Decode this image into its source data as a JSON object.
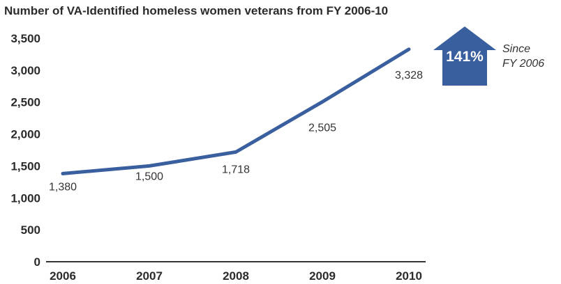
{
  "chart_data": {
    "type": "line",
    "title": "Number of VA-Identified homeless women veterans from FY 2006-10",
    "xlabel": "",
    "ylabel": "",
    "categories": [
      "2006",
      "2007",
      "2008",
      "2009",
      "2010"
    ],
    "series": [
      {
        "values": [
          1380,
          1500,
          1718,
          2505,
          3328
        ]
      }
    ],
    "data_labels": [
      "1,380",
      "1,500",
      "1,718",
      "2,505",
      "3,328"
    ],
    "ylim": [
      0,
      3500
    ],
    "yticks": [
      0,
      500,
      1000,
      1500,
      2000,
      2500,
      3000,
      3500
    ],
    "ytick_labels": [
      "0",
      "500",
      "1,000",
      "1,500",
      "2,000",
      "2,500",
      "3,000",
      "3,500"
    ],
    "grid": false,
    "line_color": "#3a5f9e"
  },
  "callout": {
    "value": "141%",
    "text_line1": "Since",
    "text_line2": "FY 2006",
    "color": "#3a5f9e"
  }
}
